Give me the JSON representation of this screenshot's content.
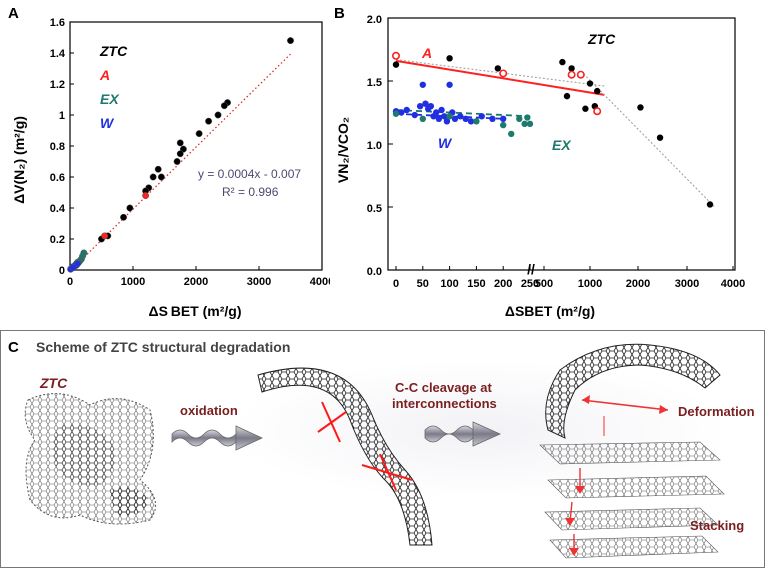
{
  "panel_a": {
    "label": "A",
    "xlabel": "ΔS BET (m²/g)",
    "ylabel": "ΔV(N₂) (m²/g)",
    "equation": "y = 0.0004x - 0.007",
    "r2": "R² = 0.996",
    "legend": [
      {
        "name": "ZTC",
        "color": "#000000"
      },
      {
        "name": "A",
        "color": "#ff2020"
      },
      {
        "name": "EX",
        "color": "#1e7a6e"
      },
      {
        "name": "W",
        "color": "#2030e0"
      }
    ]
  },
  "panel_b": {
    "label": "B",
    "xlabel": "ΔSBET (m²/g)",
    "ylabel": "VN₂/VCO₂",
    "series_labels": {
      "A": "A",
      "W": "W",
      "EX": "EX",
      "ZTC": "ZTC"
    },
    "break_mark": "//"
  },
  "panel_c": {
    "label": "C",
    "title": "Scheme of ZTC structural degradation",
    "ztc_label": "ZTC",
    "step1": "oxidation",
    "step2_line1": "C-C cleavage at",
    "step2_line2": "interconnections",
    "deformation": "Deformation",
    "stacking": "Stacking"
  },
  "chart_data": [
    {
      "type": "scatter",
      "title": "",
      "xlabel": "ΔSBET (m²/g)",
      "ylabel": "ΔV(N₂) (m²/g)",
      "xlim": [
        0,
        4000
      ],
      "ylim": [
        0,
        1.6
      ],
      "xticks": [
        "0",
        "1000",
        "2000",
        "3000",
        "4000"
      ],
      "yticks": [
        "0",
        "0.2",
        "0.4",
        "0.6",
        "0.8",
        "1",
        "1.2",
        "1.4",
        "1.6"
      ],
      "series": [
        {
          "name": "ZTC",
          "color": "#000000",
          "points": [
            [
              3500,
              1.48
            ],
            [
              2500,
              1.08
            ],
            [
              2450,
              1.06
            ],
            [
              2350,
              1.0
            ],
            [
              2200,
              0.96
            ],
            [
              2050,
              0.88
            ],
            [
              1800,
              0.78
            ],
            [
              1750,
              0.82
            ],
            [
              1750,
              0.75
            ],
            [
              1450,
              0.6
            ],
            [
              1400,
              0.65
            ],
            [
              1320,
              0.6
            ],
            [
              1250,
              0.53
            ],
            [
              1200,
              0.51
            ],
            [
              950,
              0.4
            ],
            [
              850,
              0.34
            ],
            [
              1700,
              0.7
            ],
            [
              600,
              0.22
            ],
            [
              500,
              0.2
            ]
          ]
        },
        {
          "name": "A",
          "color": "#ff2020",
          "points": [
            [
              1200,
              0.48
            ],
            [
              550,
              0.22
            ],
            [
              100,
              0.04
            ]
          ]
        },
        {
          "name": "EX",
          "color": "#1e7a6e",
          "points": [
            [
              220,
              0.11
            ],
            [
              200,
              0.09
            ],
            [
              180,
              0.07
            ],
            [
              160,
              0.06
            ],
            [
              140,
              0.05
            ],
            [
              120,
              0.05
            ]
          ]
        },
        {
          "name": "W",
          "color": "#2030e0",
          "points": [
            [
              20,
              0.01
            ],
            [
              40,
              0.02
            ],
            [
              60,
              0.02
            ],
            [
              80,
              0.03
            ],
            [
              100,
              0.03
            ],
            [
              120,
              0.04
            ],
            [
              10,
              0.005
            ],
            [
              50,
              0.015
            ]
          ]
        }
      ],
      "fit": {
        "slope": 0.0004,
        "intercept": -0.007,
        "x_range": [
          0,
          3500
        ]
      }
    },
    {
      "type": "scatter",
      "title": "",
      "xlabel": "ΔSBET (m²/g)",
      "ylabel": "VN₂/VCO₂",
      "ylim": [
        0,
        2.0
      ],
      "yticks": [
        "0.0",
        "0.5",
        "1.0",
        "1.5",
        "2.0"
      ],
      "xticks_left": [
        "0",
        "50",
        "100",
        "150",
        "200",
        "250"
      ],
      "xticks_right": [
        "500",
        "1000",
        "2000",
        "3000",
        "4000"
      ],
      "series": [
        {
          "name": "ZTC",
          "color": "#000000",
          "marker": "filled",
          "points": [
            [
              0,
              1.63
            ],
            [
              100,
              1.68
            ],
            [
              190,
              1.6
            ],
            [
              700,
              1.65
            ],
            [
              800,
              1.6
            ],
            [
              1000,
              1.48
            ],
            [
              1100,
              1.3
            ],
            [
              750,
              1.38
            ],
            [
              950,
              1.28
            ],
            [
              1150,
              1.42
            ],
            [
              2050,
              1.29
            ],
            [
              2450,
              1.05
            ],
            [
              3500,
              0.52
            ]
          ]
        },
        {
          "name": "A",
          "color": "#ff2020",
          "marker": "open",
          "points": [
            [
              0,
              1.7
            ],
            [
              200,
              1.56
            ],
            [
              800,
              1.55
            ],
            [
              900,
              1.55
            ],
            [
              1150,
              1.26
            ]
          ]
        },
        {
          "name": "W",
          "color": "#2030e0",
          "marker": "filled",
          "points": [
            [
              0,
              1.26
            ],
            [
              10,
              1.25
            ],
            [
              20,
              1.27
            ],
            [
              35,
              1.23
            ],
            [
              45,
              1.3
            ],
            [
              50,
              1.47
            ],
            [
              55,
              1.32
            ],
            [
              60,
              1.28
            ],
            [
              65,
              1.3
            ],
            [
              70,
              1.22
            ],
            [
              75,
              1.25
            ],
            [
              80,
              1.2
            ],
            [
              85,
              1.27
            ],
            [
              90,
              1.22
            ],
            [
              95,
              1.18
            ],
            [
              100,
              1.47
            ],
            [
              105,
              1.25
            ],
            [
              110,
              1.2
            ],
            [
              120,
              1.22
            ],
            [
              130,
              1.2
            ],
            [
              140,
              1.18
            ],
            [
              160,
              1.22
            ],
            [
              180,
              1.2
            ],
            [
              200,
              1.2
            ]
          ]
        },
        {
          "name": "EX",
          "color": "#1e7a6e",
          "marker": "filled",
          "points": [
            [
              0,
              1.24
            ],
            [
              50,
              1.2
            ],
            [
              100,
              1.22
            ],
            [
              150,
              1.18
            ],
            [
              200,
              1.15
            ],
            [
              215,
              1.08
            ],
            [
              230,
              1.2
            ],
            [
              240,
              1.16
            ],
            [
              250,
              1.16
            ],
            [
              245,
              1.21
            ]
          ]
        }
      ]
    }
  ]
}
